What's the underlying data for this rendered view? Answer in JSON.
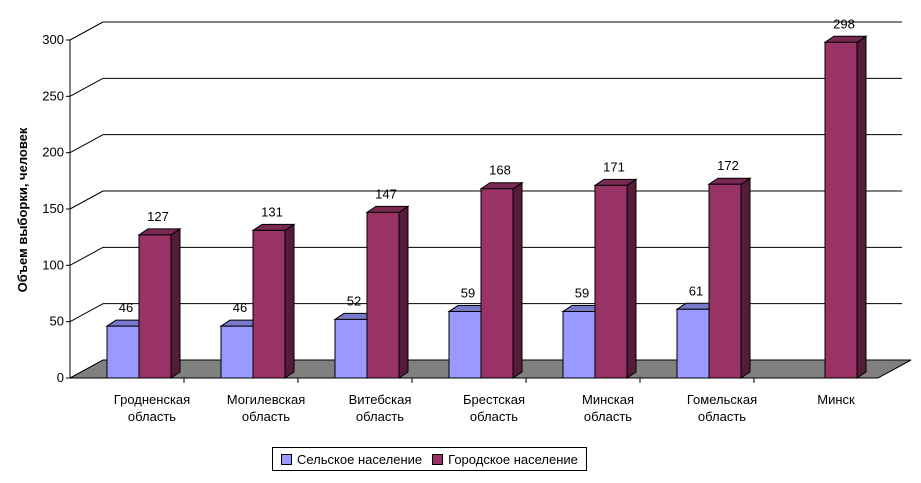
{
  "chart_data": {
    "type": "bar",
    "title": "",
    "xlabel": "",
    "ylabel": "Объем выборки, человек",
    "ylim": [
      0,
      300
    ],
    "yticks": [
      "0",
      "50",
      "100",
      "150",
      "200",
      "250",
      "300"
    ],
    "grid": true,
    "legend_position": "bottom",
    "categories": [
      [
        "Гродненская",
        "область"
      ],
      [
        "Могилевская",
        "область"
      ],
      [
        "Витебская",
        "область"
      ],
      [
        "Брестская",
        "область"
      ],
      [
        "Минская",
        "область"
      ],
      [
        "Гомельская",
        "область"
      ],
      [
        "Минск"
      ]
    ],
    "series": [
      {
        "name": "Сельское население",
        "color": "#9999ff",
        "values": [
          46,
          46,
          52,
          59,
          59,
          61,
          null
        ]
      },
      {
        "name": "Городское население",
        "color": "#993366",
        "values": [
          127,
          131,
          147,
          168,
          171,
          172,
          298
        ]
      }
    ]
  }
}
